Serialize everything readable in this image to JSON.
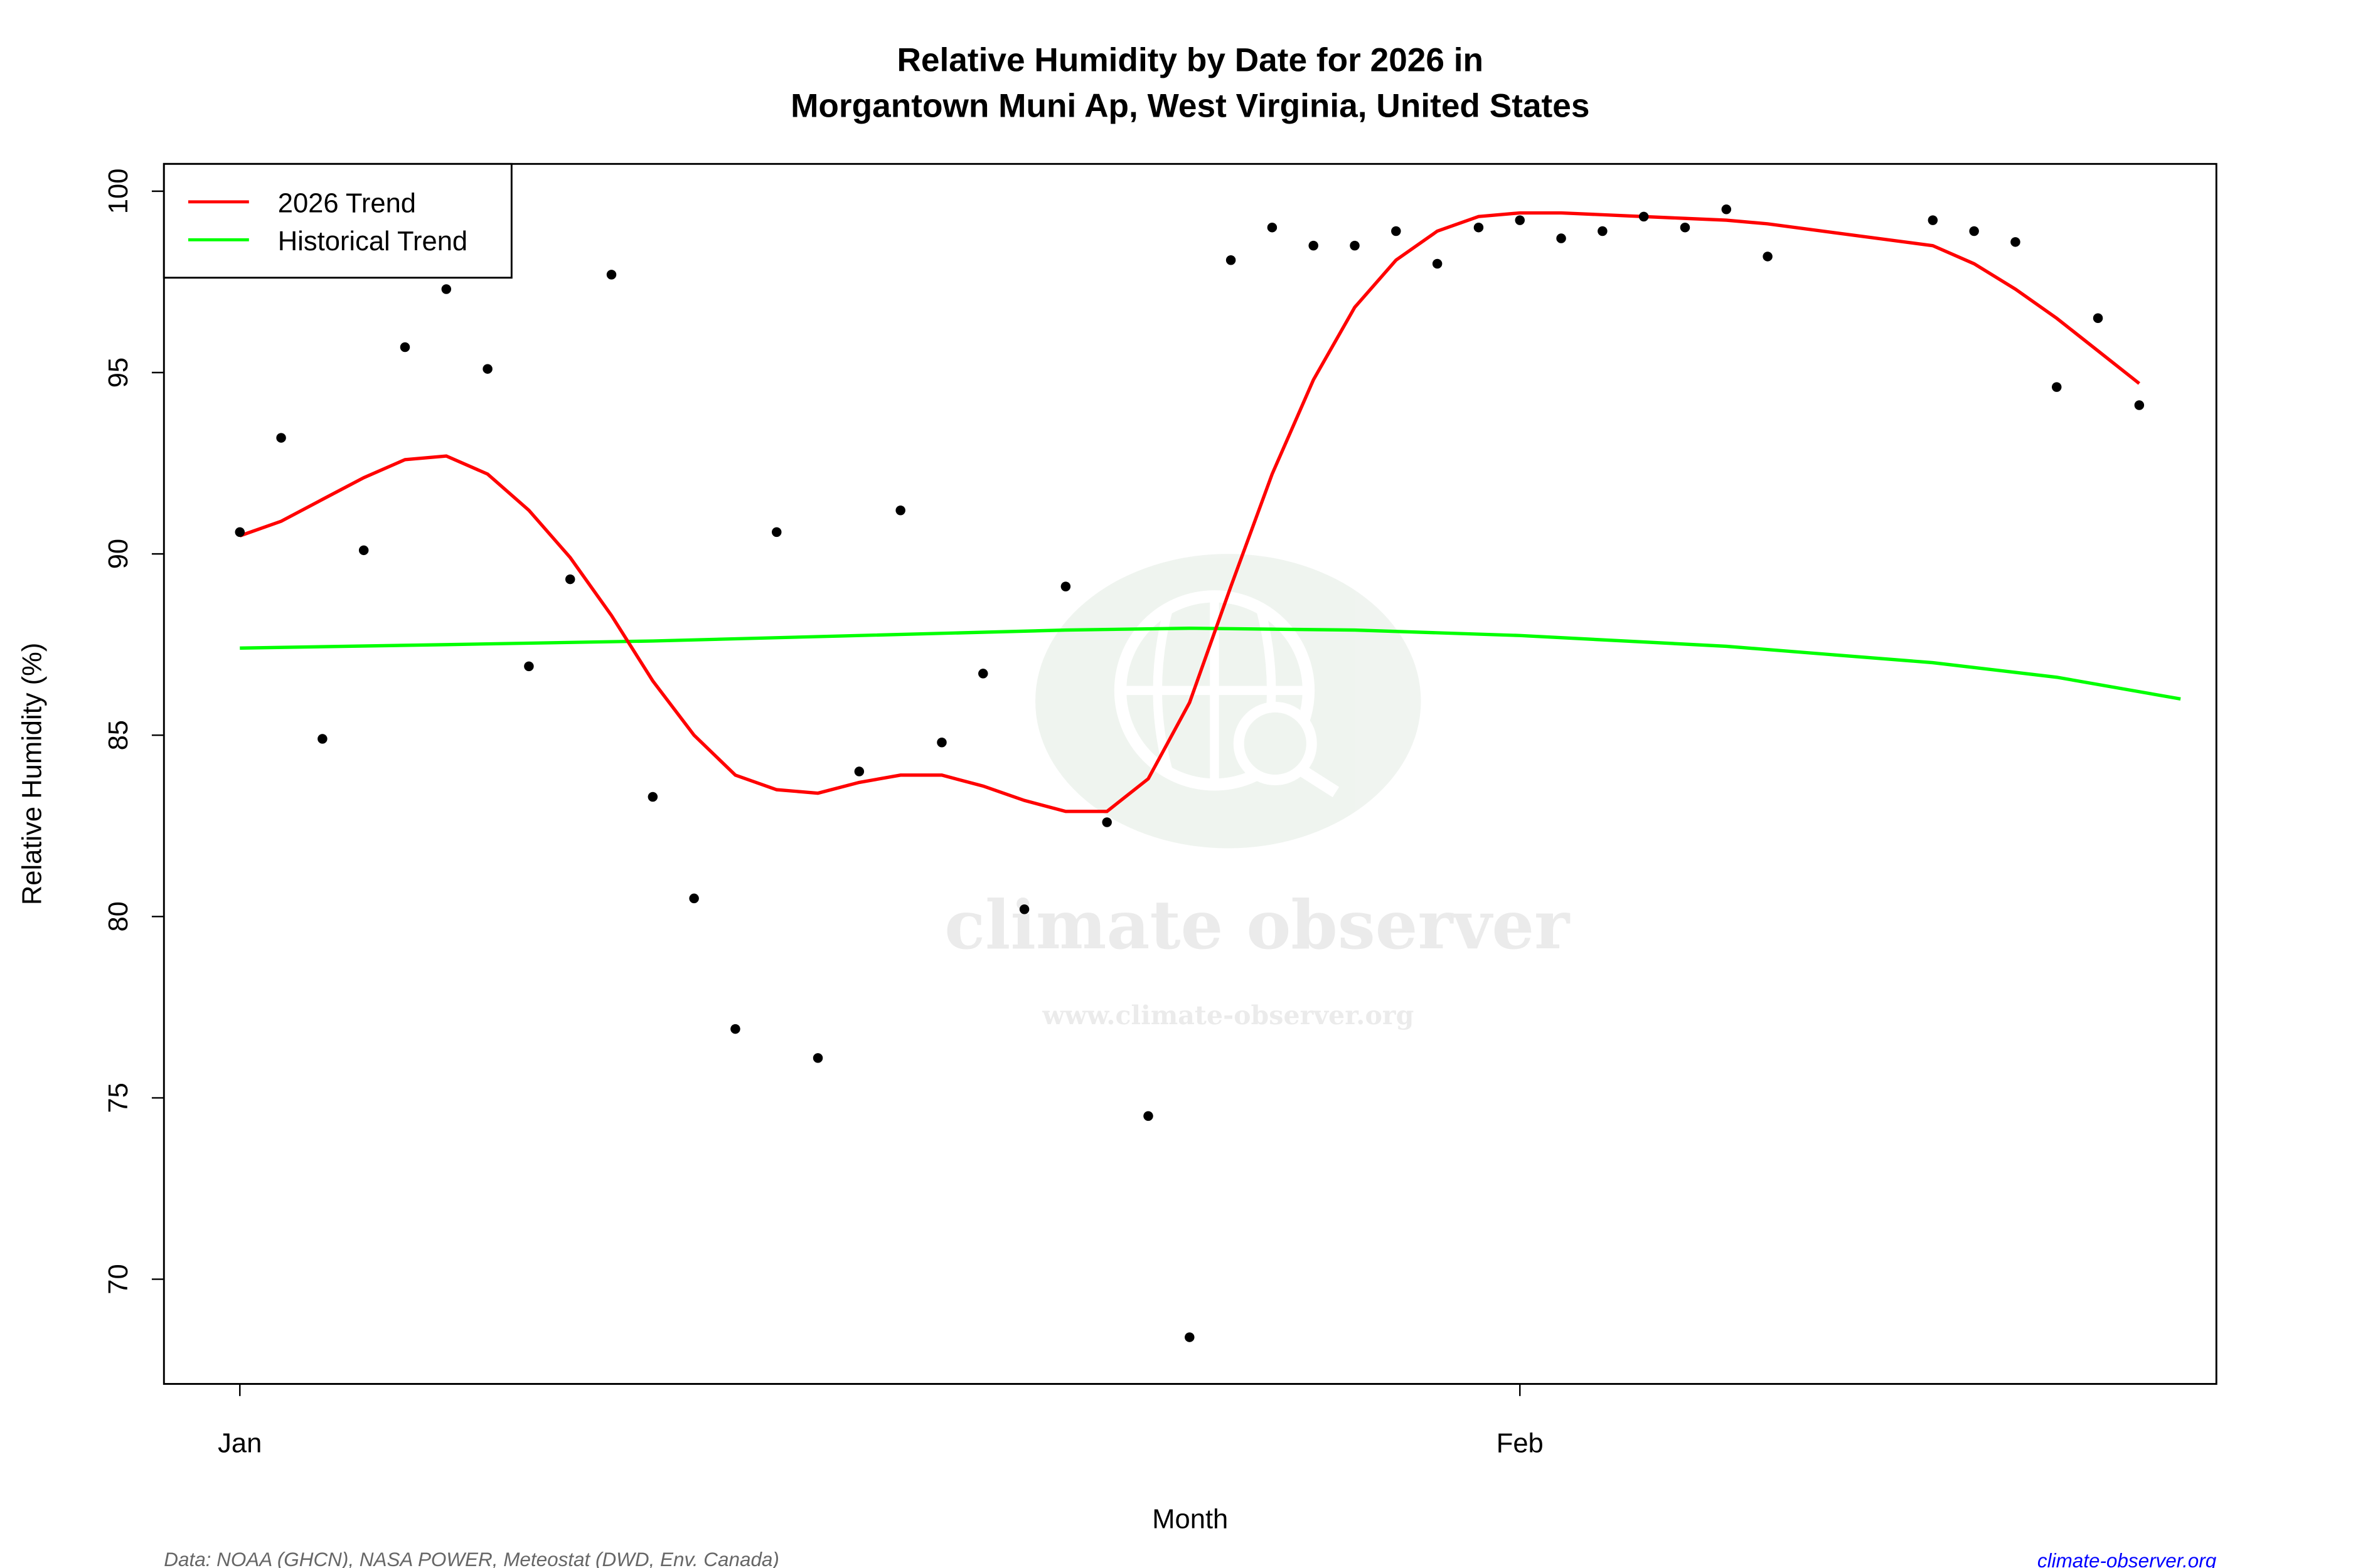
{
  "chart_data": {
    "type": "line",
    "title": [
      "Relative Humidity by Date for 2026 in",
      "Morgantown Muni Ap, West Virginia, United States"
    ],
    "xlabel": "Month",
    "ylabel": "Relative Humidity (%)",
    "ylim": [
      67,
      100.8
    ],
    "xlim": [
      "2026-01-01",
      "2026-02-17"
    ],
    "x_ticks": [
      {
        "date": "2026-01-01",
        "label": "Jan"
      },
      {
        "date": "2026-02-01",
        "label": "Feb"
      }
    ],
    "y_ticks": [
      70,
      75,
      80,
      85,
      90,
      95,
      100
    ],
    "grid": false,
    "legend": {
      "position": "top-left",
      "entries": [
        "2026 Trend",
        "Historical Trend"
      ]
    },
    "observations": {
      "type": "scatter",
      "color": "#000000",
      "x": [
        "2026-01-01",
        "2026-01-02",
        "2026-01-03",
        "2026-01-04",
        "2026-01-05",
        "2026-01-06",
        "2026-01-07",
        "2026-01-08",
        "2026-01-09",
        "2026-01-10",
        "2026-01-11",
        "2026-01-12",
        "2026-01-13",
        "2026-01-14",
        "2026-01-15",
        "2026-01-16",
        "2026-01-17",
        "2026-01-18",
        "2026-01-19",
        "2026-01-20",
        "2026-01-21",
        "2026-01-22",
        "2026-01-23",
        "2026-01-24",
        "2026-01-25",
        "2026-01-26",
        "2026-01-27",
        "2026-01-28",
        "2026-01-29",
        "2026-01-30",
        "2026-01-31",
        "2026-02-01",
        "2026-02-02",
        "2026-02-03",
        "2026-02-04",
        "2026-02-05",
        "2026-02-06",
        "2026-02-07",
        "2026-02-11",
        "2026-02-12",
        "2026-02-13",
        "2026-02-14",
        "2026-02-15",
        "2026-02-16"
      ],
      "y": [
        90.6,
        93.2,
        84.9,
        90.1,
        95.7,
        97.3,
        95.1,
        86.9,
        89.3,
        97.7,
        83.3,
        80.5,
        76.9,
        90.6,
        76.1,
        84.0,
        91.2,
        84.8,
        86.7,
        80.2,
        89.1,
        82.6,
        74.5,
        68.4,
        98.1,
        99.0,
        98.5,
        98.5,
        98.9,
        98.0,
        99.0,
        99.2,
        98.7,
        98.9,
        99.3,
        99.0,
        99.5,
        98.2,
        99.2,
        98.9,
        98.6,
        94.6,
        96.5,
        94.1
      ]
    },
    "series": [
      {
        "name": "2026 Trend",
        "color": "#ff0000",
        "x": [
          "2026-01-01",
          "2026-01-02",
          "2026-01-03",
          "2026-01-04",
          "2026-01-05",
          "2026-01-06",
          "2026-01-07",
          "2026-01-08",
          "2026-01-09",
          "2026-01-10",
          "2026-01-11",
          "2026-01-12",
          "2026-01-13",
          "2026-01-14",
          "2026-01-15",
          "2026-01-16",
          "2026-01-17",
          "2026-01-18",
          "2026-01-19",
          "2026-01-20",
          "2026-01-21",
          "2026-01-22",
          "2026-01-23",
          "2026-01-24",
          "2026-01-25",
          "2026-01-26",
          "2026-01-27",
          "2026-01-28",
          "2026-01-29",
          "2026-01-30",
          "2026-01-31",
          "2026-02-01",
          "2026-02-02",
          "2026-02-03",
          "2026-02-04",
          "2026-02-05",
          "2026-02-06",
          "2026-02-07",
          "2026-02-11",
          "2026-02-12",
          "2026-02-13",
          "2026-02-14",
          "2026-02-15",
          "2026-02-16"
        ],
        "y": [
          90.5,
          90.9,
          91.5,
          92.1,
          92.6,
          92.7,
          92.2,
          91.2,
          89.9,
          88.3,
          86.5,
          85.0,
          83.9,
          83.5,
          83.4,
          83.7,
          83.9,
          83.9,
          83.6,
          83.2,
          82.9,
          82.9,
          83.8,
          85.9,
          89.1,
          92.2,
          94.8,
          96.8,
          98.1,
          98.9,
          99.3,
          99.4,
          99.4,
          99.35,
          99.3,
          99.25,
          99.2,
          99.1,
          98.5,
          98.0,
          97.3,
          96.5,
          95.6,
          94.7
        ]
      },
      {
        "name": "Historical Trend",
        "color": "#00ff00",
        "x": [
          "2026-01-01",
          "2026-01-06",
          "2026-01-11",
          "2026-01-16",
          "2026-01-21",
          "2026-01-24",
          "2026-01-28",
          "2026-02-01",
          "2026-02-06",
          "2026-02-11",
          "2026-02-14",
          "2026-02-17"
        ],
        "y": [
          87.4,
          87.5,
          87.6,
          87.75,
          87.9,
          87.95,
          87.9,
          87.75,
          87.45,
          87.0,
          86.6,
          86.0
        ]
      }
    ]
  },
  "footer": {
    "source": "Data: NOAA (GHCN), NASA POWER, Meteostat (DWD, Env. Canada)",
    "site": "climate-observer.org"
  },
  "watermark": {
    "name": "climate observer",
    "url": "www.climate-observer.org"
  }
}
